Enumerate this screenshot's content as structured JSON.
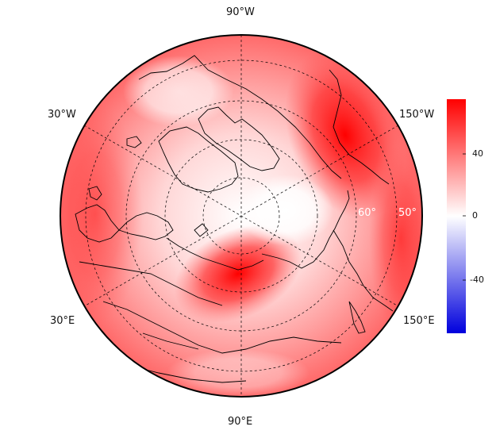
{
  "map": {
    "projection": "north-polar-stereographic",
    "longitude_labels": {
      "top": "90°W",
      "bottom": "90°E",
      "upper_left": "30°W",
      "upper_right": "150°W",
      "lower_left": "30°E",
      "lower_right": "150°E"
    },
    "latitude_labels": [
      "60°",
      "50°"
    ],
    "colormap": {
      "low": "#0000dd",
      "mid": "#ffffff",
      "high": "#ff0000"
    }
  },
  "colorbar": {
    "ticks": [
      "40",
      "0",
      "-40"
    ],
    "range": [
      -60,
      60
    ]
  }
}
